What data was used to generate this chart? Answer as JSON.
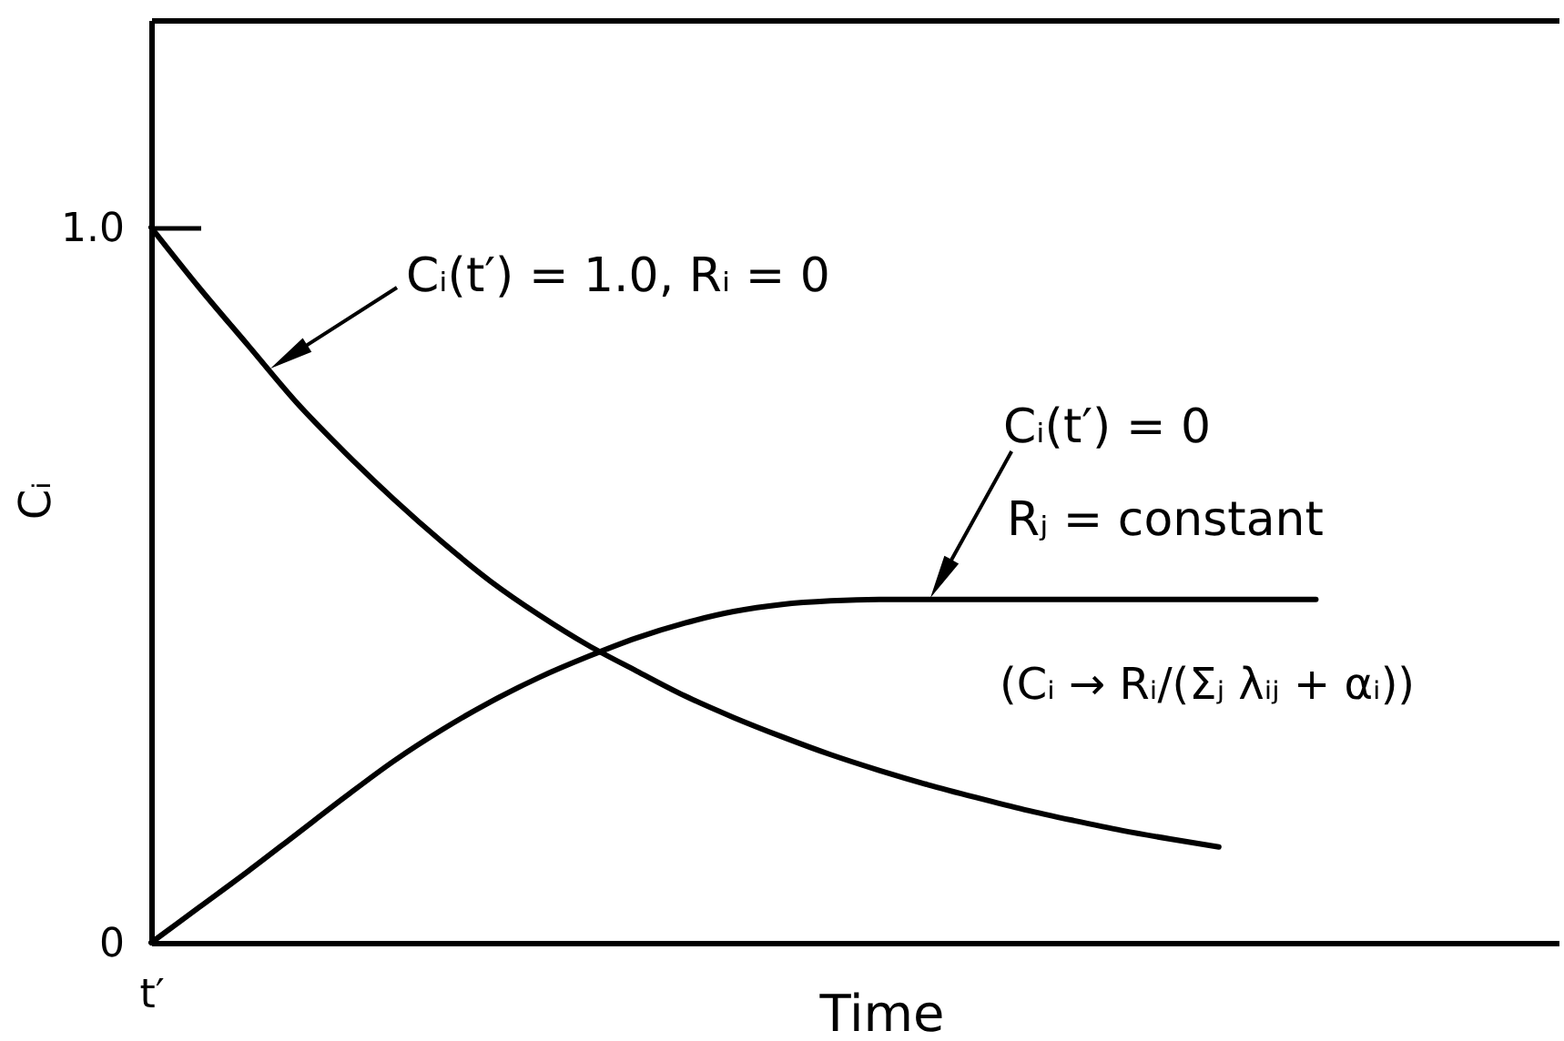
{
  "chart_data": {
    "type": "line",
    "xlabel": "Time",
    "ylabel": "Cᵢ",
    "categories": [
      "t′",
      null,
      null,
      null,
      null,
      null,
      null,
      null,
      null,
      null,
      null,
      null,
      null,
      null,
      null,
      null,
      null,
      null,
      null,
      null,
      null,
      null,
      null,
      null,
      null,
      null,
      null,
      null,
      null,
      null
    ],
    "ylim": [
      0,
      1.29
    ],
    "yticks": [
      0,
      {
        "value": 1,
        "label": "1.0"
      }
    ],
    "grid": false,
    "series": [
      {
        "color": "#000000",
        "values": [
          1.0,
          0.915,
          0.835,
          0.755,
          0.685,
          0.62,
          0.56,
          0.505,
          0.458,
          0.416,
          0.38,
          0.345,
          0.315,
          0.288,
          0.263,
          0.241,
          0.221,
          0.203,
          0.186,
          0.171,
          0.157,
          0.145,
          0.134,
          null,
          null,
          null,
          null,
          null,
          null,
          null
        ]
      },
      {
        "color": "#000000",
        "values": [
          0,
          0.05,
          0.1,
          0.152,
          0.204,
          0.254,
          0.298,
          0.337,
          0.371,
          0.4,
          0.426,
          0.447,
          0.463,
          0.473,
          0.478,
          0.48,
          0.48,
          0.48,
          0.48,
          0.48,
          0.48,
          0.48,
          0.48,
          0.48,
          0.48,
          null,
          null,
          null,
          null,
          null
        ]
      }
    ],
    "annotations": [
      "Cᵢ(t′) = 1.0, Rᵢ = 0",
      "Cᵢ(t′) = 0",
      "Rⱼ = constant",
      "(Cᵢ → Rᵢ/(Σⱼ λᵢⱼ + αᵢ))"
    ]
  }
}
